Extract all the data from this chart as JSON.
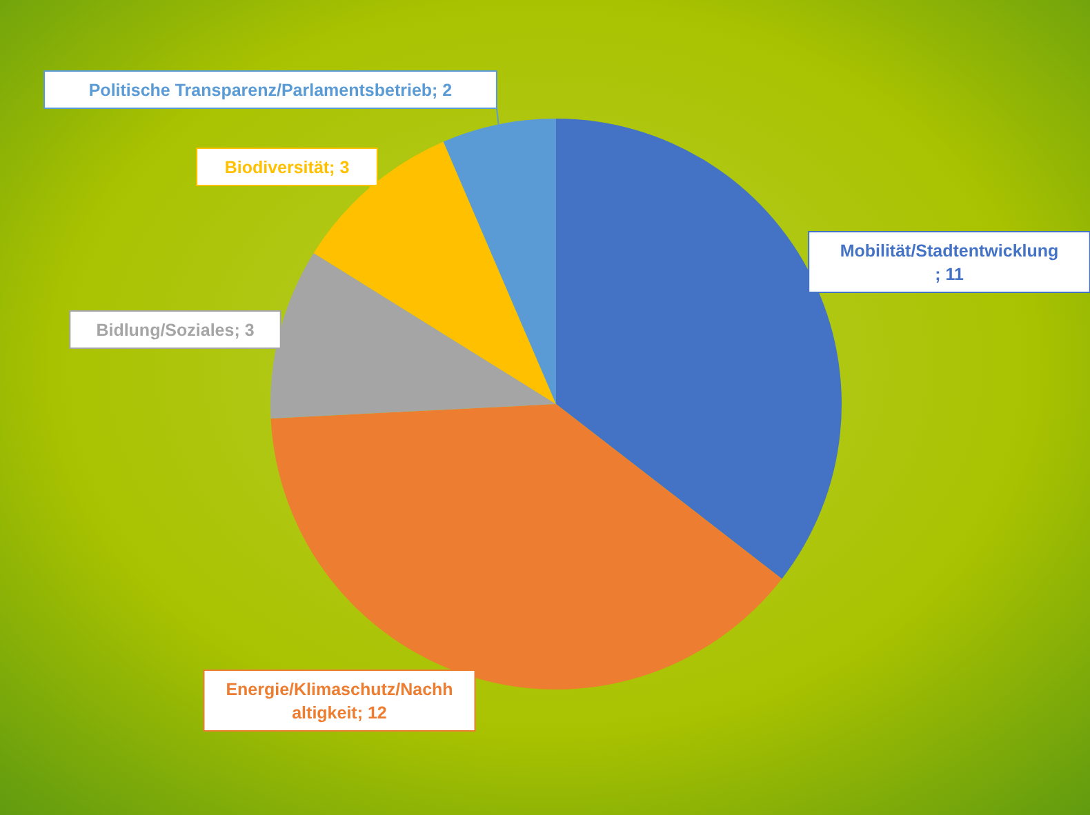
{
  "chart_data": {
    "type": "pie",
    "categories": [
      "Mobilität/Stadtentwicklung",
      "Energie/Klimaschutz/Nachhaltigkeit",
      "Bidlung/Soziales",
      "Biodiversität",
      "Politische Transparenz/Parlamentsbetrieb"
    ],
    "values": [
      11,
      12,
      3,
      3,
      2
    ],
    "colors": [
      "#4472c4",
      "#ed7d31",
      "#a5a5a5",
      "#ffc000",
      "#5b9bd5"
    ],
    "value_labels": [
      "; 11",
      "; 12",
      "; 3",
      "; 3",
      "; 2"
    ]
  }
}
